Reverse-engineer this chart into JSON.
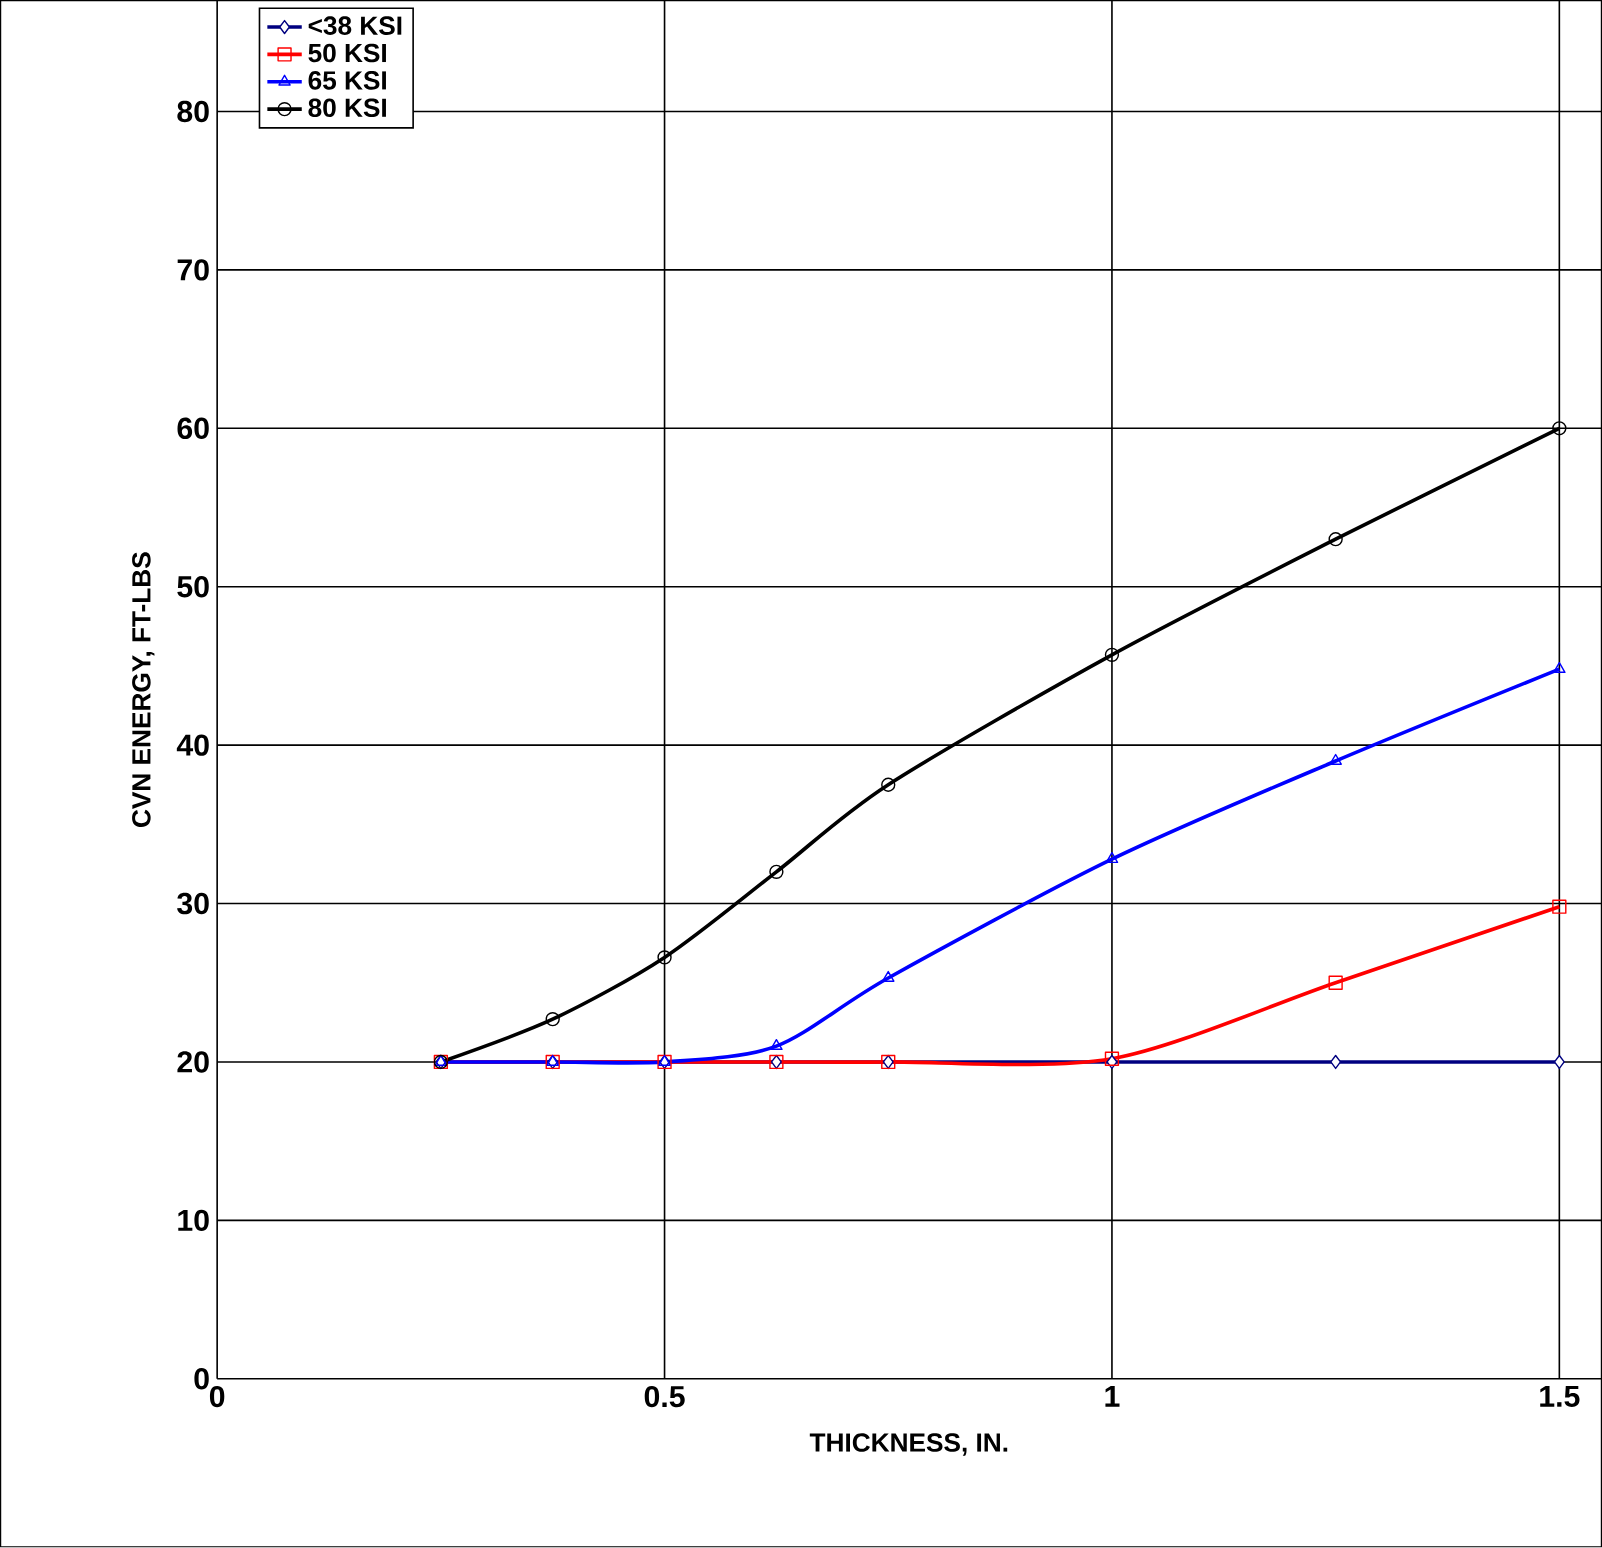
{
  "chart_data": {
    "type": "line",
    "xlabel": "THICKNESS, IN.",
    "ylabel": "CVN ENERGY, FT-LBS",
    "x": [
      0.25,
      0.375,
      0.5,
      0.625,
      0.75,
      1.0,
      1.25,
      1.5
    ],
    "series": [
      {
        "name": "<38 KSI",
        "color": "#000080",
        "marker": "diamond",
        "values": [
          20,
          20,
          20,
          20,
          20,
          20,
          20,
          20
        ]
      },
      {
        "name": "50 KSI",
        "color": "#ff0000",
        "marker": "square",
        "values": [
          20,
          20,
          20,
          20,
          20,
          20.2,
          25,
          29.8
        ]
      },
      {
        "name": "65 KSI",
        "color": "#0000ff",
        "marker": "triangle",
        "values": [
          20,
          20,
          20,
          21,
          25.3,
          32.8,
          39,
          44.8
        ]
      },
      {
        "name": "80 KSI",
        "color": "#000000",
        "marker": "circle",
        "values": [
          20,
          22.7,
          26.6,
          32,
          37.5,
          45.7,
          53,
          60
        ]
      }
    ],
    "xlim": [
      0,
      1.547
    ],
    "ylim": [
      0,
      87
    ],
    "xticks": [
      0,
      0.5,
      1,
      1.5
    ],
    "yticks": [
      0,
      10,
      20,
      30,
      40,
      50,
      60,
      70,
      80
    ],
    "grid": true,
    "legend": "top left",
    "line_style": "solid"
  }
}
